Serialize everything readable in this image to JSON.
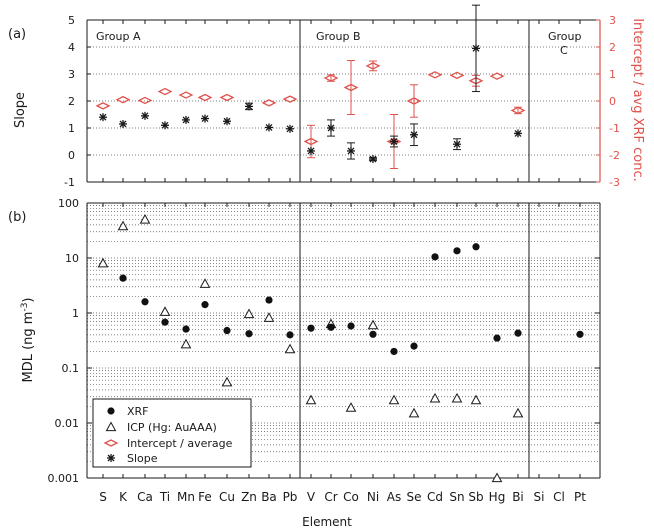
{
  "chart_data": [
    {
      "panel": "(a)",
      "type": "scatter",
      "x_categories": [
        "S",
        "K",
        "Ca",
        "Ti",
        "Mn",
        "Fe",
        "Cu",
        "Zn",
        "Ba",
        "Pb",
        "V",
        "Cr",
        "Co",
        "Ni",
        "As",
        "Se",
        "Cd",
        "Sn",
        "Sb",
        "Hg",
        "Bi",
        "Si",
        "Cl",
        "Pt"
      ],
      "groups": [
        "Group A",
        "Group B",
        "Group C"
      ],
      "ylabel_left": "Slope",
      "ylim_left": [
        -1,
        5
      ],
      "yticks_left": [
        "-1",
        "0",
        "1",
        "2",
        "3",
        "4",
        "5"
      ],
      "ylabel_right": "Intercept / avg XRF conc.",
      "ylim_right": [
        -3,
        3
      ],
      "yticks_right": [
        "-3",
        "-2",
        "-1",
        "0",
        "1",
        "2",
        "3"
      ],
      "grid": "horizontal dotted",
      "series": [
        {
          "name": "Slope",
          "axis": "left",
          "marker": "asterisk",
          "values": [
            1.4,
            1.15,
            1.45,
            1.1,
            1.3,
            1.35,
            1.25,
            1.8,
            1.02,
            0.97,
            0.15,
            1.0,
            0.15,
            -0.15,
            0.5,
            0.75,
            null,
            0.4,
            3.95,
            null,
            0.8,
            null,
            null,
            null
          ],
          "err": [
            0,
            0,
            0,
            0,
            0,
            0,
            0,
            0.12,
            0,
            0,
            0,
            0.3,
            0.3,
            0.05,
            0.2,
            0.4,
            null,
            0.2,
            1.6,
            null,
            0,
            null,
            null,
            null
          ]
        },
        {
          "name": "Intercept / average",
          "axis": "right",
          "marker": "diamond",
          "values": [
            -0.18,
            0.05,
            0.02,
            0.35,
            0.22,
            0.13,
            0.13,
            null,
            -0.07,
            0.07,
            -1.5,
            0.85,
            0.5,
            1.3,
            -1.5,
            0.0,
            0.97,
            0.95,
            0.75,
            0.92,
            -0.35,
            null,
            null,
            null
          ],
          "err": [
            0,
            0,
            0,
            0,
            0,
            0,
            0,
            null,
            0,
            0,
            0.6,
            0.12,
            1.0,
            0.18,
            1.0,
            0.6,
            0,
            0,
            0.2,
            0,
            0.12,
            null,
            null,
            null
          ]
        }
      ]
    },
    {
      "panel": "(b)",
      "type": "scatter",
      "x_categories": [
        "S",
        "K",
        "Ca",
        "Ti",
        "Mn",
        "Fe",
        "Cu",
        "Zn",
        "Ba",
        "Pb",
        "V",
        "Cr",
        "Co",
        "Ni",
        "As",
        "Se",
        "Cd",
        "Sn",
        "Sb",
        "Hg",
        "Bi",
        "Si",
        "Cl",
        "Pt"
      ],
      "xlabel": "Element",
      "ylabel": "MDL (ng m-3)",
      "yscale": "log",
      "ylim": [
        0.001,
        100
      ],
      "yticks": [
        "0.001",
        "0.01",
        "0.1",
        "1",
        "10",
        "100"
      ],
      "grid": "horizontal dotted",
      "series": [
        {
          "name": "XRF",
          "marker": "filled circle",
          "values": [
            null,
            4.3,
            1.6,
            0.68,
            0.51,
            1.42,
            0.48,
            0.42,
            1.72,
            0.4,
            0.53,
            0.55,
            0.58,
            0.41,
            0.2,
            0.25,
            10.5,
            13.5,
            16.0,
            0.35,
            0.43,
            null,
            null,
            0.41
          ]
        },
        {
          "name": "ICP (Hg: AuAAA)",
          "marker": "open triangle",
          "values": [
            8.0,
            38.0,
            50.0,
            1.05,
            0.27,
            3.4,
            0.055,
            0.96,
            0.82,
            0.22,
            0.026,
            0.63,
            0.019,
            0.6,
            0.026,
            0.015,
            0.028,
            0.028,
            0.026,
            0.001,
            0.015,
            null,
            null,
            null
          ]
        }
      ]
    }
  ],
  "legend": [
    "XRF",
    "ICP (Hg: AuAAA)",
    "Intercept / average",
    "Slope"
  ],
  "colors": {
    "intercept": "#e0524c",
    "axis": "#1a1a1a",
    "grid": "#555555"
  }
}
